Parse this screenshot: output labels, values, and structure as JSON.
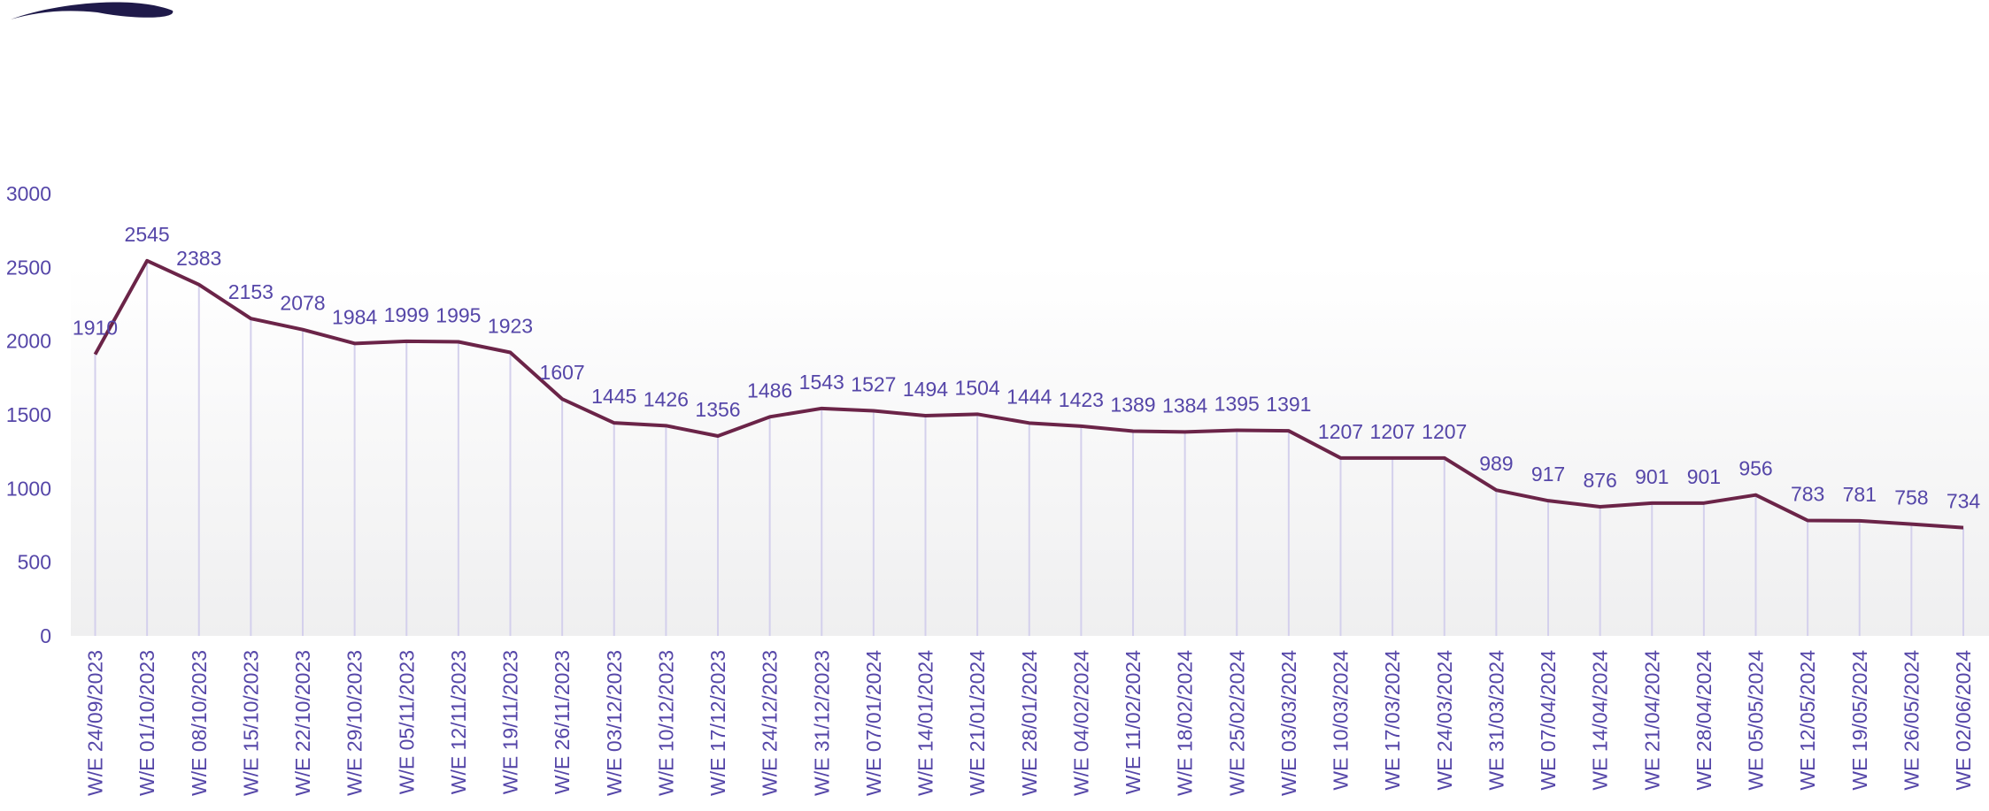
{
  "chart_data": {
    "type": "line",
    "categories": [
      "W/E 24/09/2023",
      "W/E 01/10/2023",
      "W/E 08/10/2023",
      "W/E 15/10/2023",
      "W/E 22/10/2023",
      "W/E 29/10/2023",
      "W/E 05/11/2023",
      "W/E 12/11/2023",
      "W/E 19/11/2023",
      "W/E 26/11/2023",
      "W/E 03/12/2023",
      "W/E 10/12/2023",
      "W/E 17/12/2023",
      "W/E 24/12/2023",
      "W/E 31/12/2023",
      "W/E 07/01/2024",
      "W/E 14/01/2024",
      "W/E 21/01/2024",
      "W/E 28/01/2024",
      "W/E 04/02/2024",
      "W/E 11/02/2024",
      "W/E 18/02/2024",
      "W/E 25/02/2024",
      "W/E 03/03/2024",
      "WE 10/03/2024",
      "WE 17/03/2024",
      "WE 24/03/2024",
      "WE 31/03/2024",
      "WE 07/04/2024",
      "WE 14/04/2024",
      "WE 21/04/2024",
      "WE 28/04/2024",
      "WE 05/05/2024",
      "WE 12/05/2024",
      "WE 19/05/2024",
      "WE 26/05/2024",
      "WE 02/06/2024"
    ],
    "values": [
      1910,
      2545,
      2383,
      2153,
      2078,
      1984,
      1999,
      1995,
      1923,
      1607,
      1445,
      1426,
      1356,
      1486,
      1543,
      1527,
      1494,
      1504,
      1444,
      1423,
      1389,
      1384,
      1395,
      1391,
      1207,
      1207,
      1207,
      989,
      917,
      876,
      901,
      901,
      956,
      783,
      781,
      758,
      734
    ],
    "color": "#6b2448",
    "ylim": [
      0,
      3000
    ],
    "yticks": [
      0,
      500,
      1000,
      1500,
      2000,
      2500,
      3000
    ]
  }
}
